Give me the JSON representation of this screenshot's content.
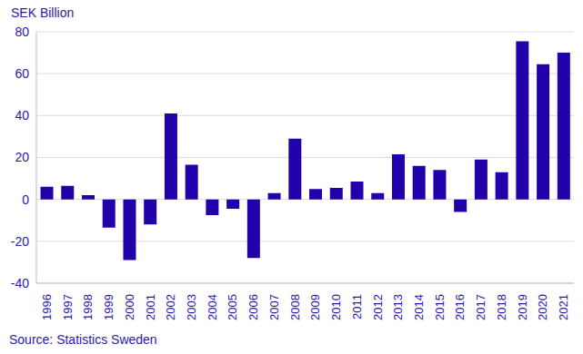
{
  "chart_data": {
    "type": "bar",
    "y_label": "SEK Billion",
    "source": "Source: Statistics Sweden",
    "categories": [
      "1996",
      "1997",
      "1998",
      "1999",
      "2000",
      "2001",
      "2002",
      "2003",
      "2004",
      "2005",
      "2006",
      "2007",
      "2008",
      "2009",
      "2010",
      "2011",
      "2012",
      "2013",
      "2014",
      "2015",
      "2016",
      "2017",
      "2018",
      "2019",
      "2020",
      "2021"
    ],
    "values": [
      6,
      6.5,
      2,
      -13.5,
      -29,
      -12,
      41,
      16.5,
      -7.5,
      -4.5,
      -28,
      3,
      29,
      5,
      5.5,
      8.5,
      3,
      21.5,
      16,
      14,
      -6,
      19,
      13,
      75.5,
      64.5,
      70
    ],
    "color": "#2200aa",
    "ylim": [
      -40,
      80
    ],
    "yticks": [
      -40,
      -20,
      0,
      20,
      40,
      60,
      80
    ],
    "grid": true
  }
}
